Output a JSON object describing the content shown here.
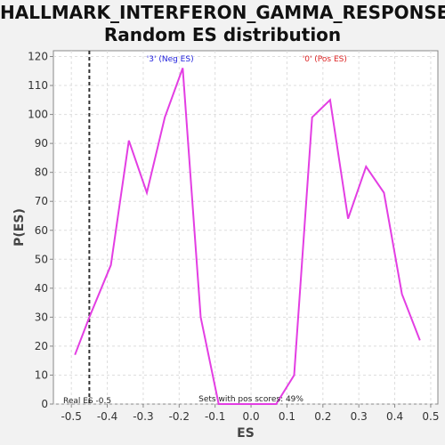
{
  "chart_data": {
    "type": "line",
    "title_line1": "HALLMARK_INTERFERON_GAMMA_RESPONSE:",
    "title_line2": "Random ES distribution",
    "xlabel": "ES",
    "ylabel": "P(ES)",
    "xlim": [
      -0.55,
      0.52
    ],
    "ylim": [
      0,
      122
    ],
    "xticks": [
      -0.5,
      -0.4,
      -0.3,
      -0.2,
      -0.1,
      0.0,
      0.1,
      0.2,
      0.3,
      0.4,
      0.5
    ],
    "xtick_labels": [
      "-0.5",
      "-0.4",
      "-0.3",
      "-0.2",
      "-0.1",
      "0.0",
      "0.1",
      "0.2",
      "0.3",
      "0.4",
      "0.5"
    ],
    "yticks": [
      0,
      10,
      20,
      30,
      40,
      50,
      60,
      70,
      80,
      90,
      100,
      110,
      120
    ],
    "grid": true,
    "series": [
      {
        "color": "#e33ee3",
        "x": [
          -0.49,
          -0.45,
          -0.39,
          -0.34,
          -0.29,
          -0.24,
          -0.19,
          -0.14,
          -0.09,
          -0.04,
          0.02,
          0.07,
          0.12,
          0.17,
          0.22,
          0.27,
          0.32,
          0.37,
          0.42,
          0.47
        ],
        "y": [
          17,
          30,
          48,
          91,
          73,
          99,
          116,
          30,
          0,
          0,
          0,
          0,
          10,
          99,
          105,
          64,
          82,
          73,
          38,
          22
        ]
      }
    ],
    "real_es_line": {
      "x": -0.45,
      "color": "#333333"
    },
    "annotations": {
      "neg_label": "'3' (Neg ES)",
      "neg_color": "#2222dd",
      "pos_label": "'0' (Pos ES)",
      "pos_color": "#dd2222",
      "real_es_label": "Real ES -0.5",
      "sets_pos_label": "Sets with pos scores: 49%"
    }
  }
}
